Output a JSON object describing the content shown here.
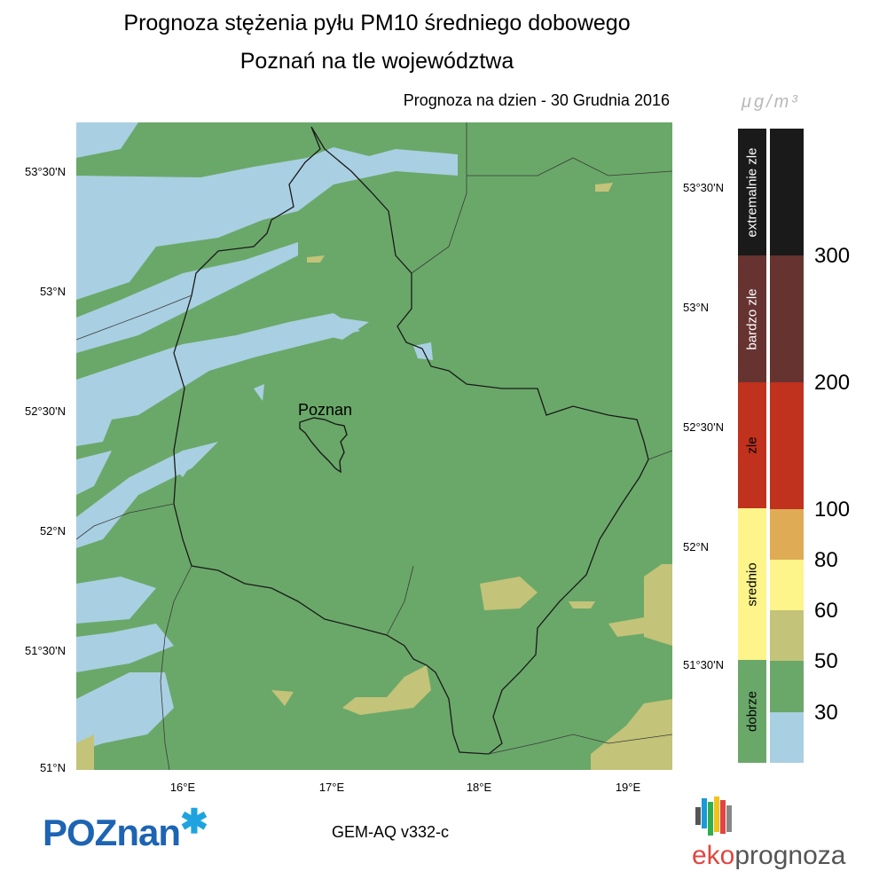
{
  "title_line1": "Prognoza stężenia pyłu PM10 średniego dobowego",
  "title_line2": "Poznań na tle województwa",
  "forecast_date": "Prognoza na dzien -  30 Grudnia 2016",
  "map_label_city": "Poznan",
  "lat_ticks_left": [
    "53°30'N",
    "53°N",
    "52°30'N",
    "52°N",
    "51°30'N",
    "51°N"
  ],
  "lat_ticks_right": [
    "53°30'N",
    "53°N",
    "52°30'N",
    "52°N",
    "51°30'N"
  ],
  "lon_ticks": [
    "16°E",
    "17°E",
    "18°E",
    "19°E"
  ],
  "legend": {
    "unit": "μg/m³",
    "categories": [
      {
        "label": "extremalnie zle",
        "color": "#1a1a1a"
      },
      {
        "label": "bardzo zle",
        "color": "#663330"
      },
      {
        "label": "zle",
        "color": "#c0311e"
      },
      {
        "label": "srednio",
        "color": "#fdf48a"
      },
      {
        "label": "dobrze",
        "color": "#6aa869"
      }
    ],
    "scale_colors": [
      "#1a1a1a",
      "#663330",
      "#c0311e",
      "#e0ab55",
      "#fdf48a",
      "#c3c379",
      "#6aa869",
      "#a9cfe2"
    ],
    "thresholds": [
      "300",
      "200",
      "100",
      "80",
      "60",
      "50",
      "30"
    ]
  },
  "colors": {
    "low": "#a9cfe2",
    "good": "#6aa869",
    "moderate": "#c3c379"
  },
  "model": "GEM-AQ v332-c",
  "logo_left": "POZnan",
  "logo_right_a": "eko",
  "logo_right_b": "prognoza"
}
